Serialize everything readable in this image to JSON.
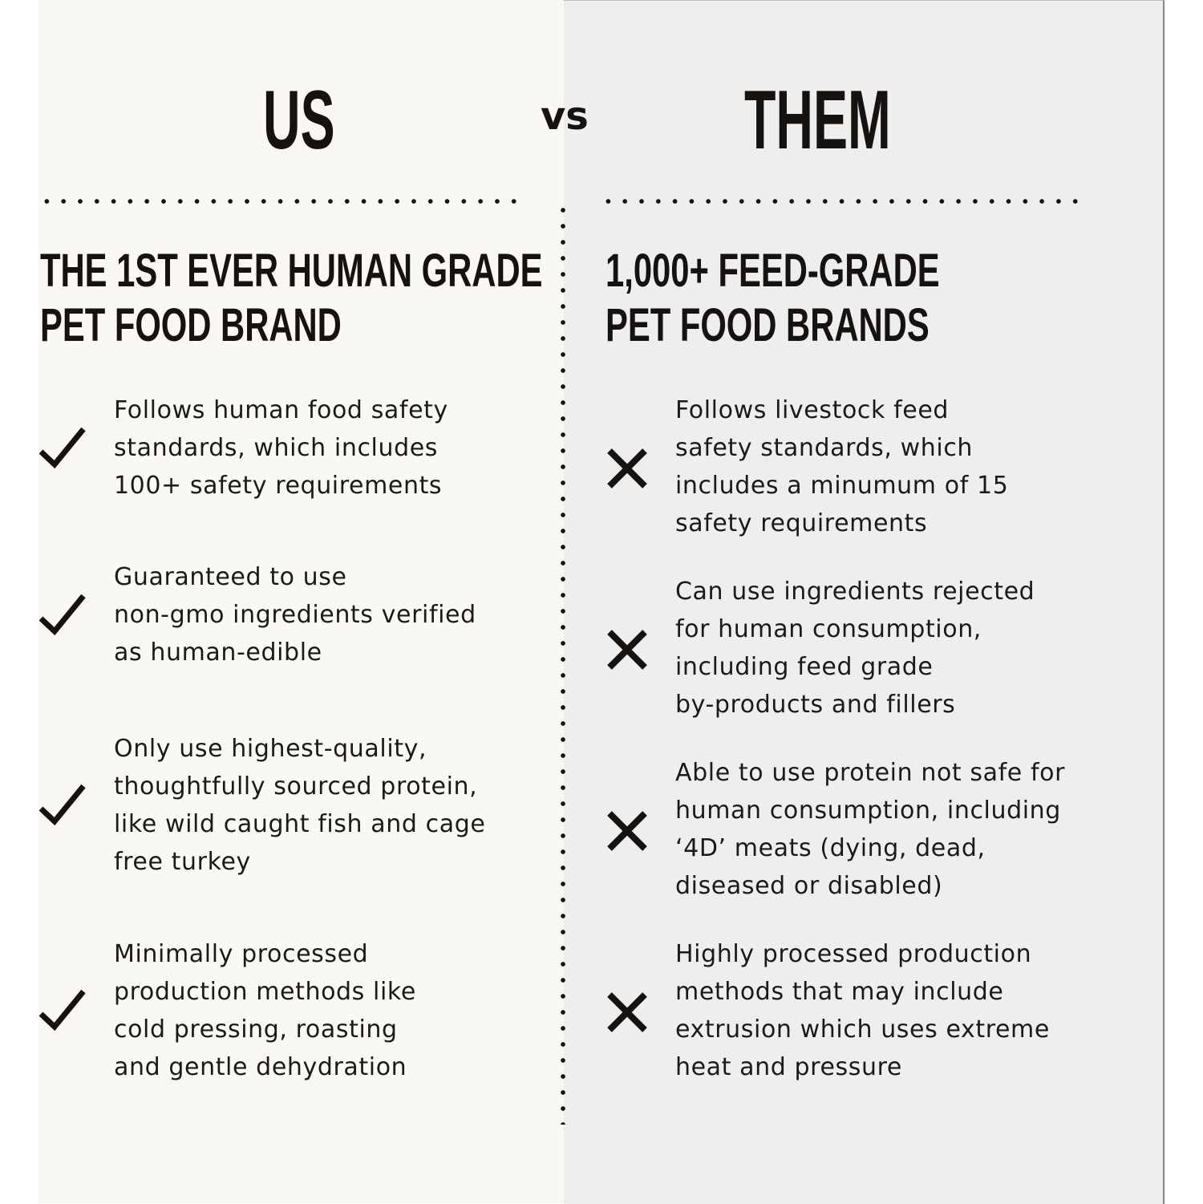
{
  "us": {
    "title": "US",
    "headline": [
      "THE 1ST EVER HUMAN GRADE",
      "PET FOOD BRAND"
    ],
    "items": [
      {
        "icon": "check-icon",
        "text": "Follows human food safety\nstandards, which includes\n100+ safety requirements"
      },
      {
        "icon": "check-icon",
        "text": "Guaranteed to use\nnon-gmo ingredients verified\nas human-edible"
      },
      {
        "icon": "check-icon",
        "text": "Only use highest-quality,\nthoughtfully sourced protein,\nlike wild caught fish and cage\nfree turkey"
      },
      {
        "icon": "check-icon",
        "text": "Minimally processed\nproduction methods like\ncold pressing, roasting\nand gentle dehydration"
      }
    ]
  },
  "vs_label": "vs",
  "them": {
    "title": "THEM",
    "headline": [
      "1,000+ FEED-GRADE",
      "PET FOOD BRANDS"
    ],
    "items": [
      {
        "icon": "x-icon",
        "text": "Follows livestock feed\nsafety standards, which\nincludes a minumum of 15\nsafety requirements"
      },
      {
        "icon": "x-icon",
        "text": "Can use ingredients rejected\nfor human consumption,\nincluding feed grade\nby-products and fillers"
      },
      {
        "icon": "x-icon",
        "text": "Able to use protein not safe for\nhuman consumption, including\n‘4D’ meats (dying, dead,\ndiseased or disabled)"
      },
      {
        "icon": "x-icon",
        "text": "Highly processed production\nmethods that may include\nextrusion which uses extreme\nheat and pressure"
      }
    ]
  },
  "colors": {
    "left_bg": "#faf8f3",
    "right_bg": "#eeeeee",
    "ink": "#161210"
  }
}
